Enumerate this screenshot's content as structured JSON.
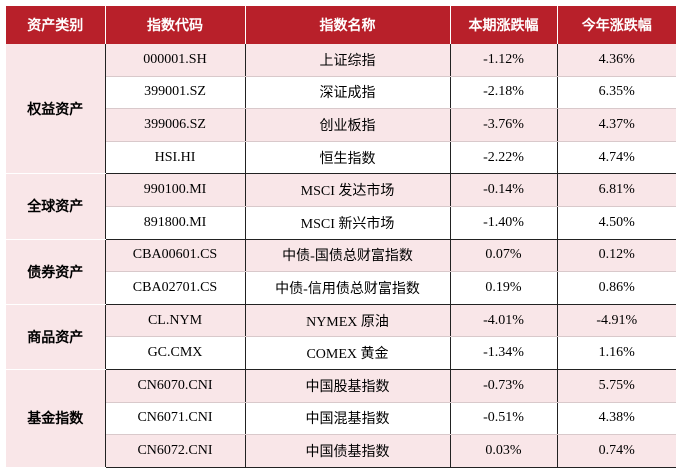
{
  "table": {
    "headers": [
      "资产类别",
      "指数代码",
      "指数名称",
      "本期涨跌幅",
      "今年涨跌幅"
    ],
    "groups": [
      {
        "category": "权益资产",
        "rows": [
          {
            "code": "000001.SH",
            "name": "上证综指",
            "period": "-1.12%",
            "ytd": "4.36%"
          },
          {
            "code": "399001.SZ",
            "name": "深证成指",
            "period": "-2.18%",
            "ytd": "6.35%"
          },
          {
            "code": "399006.SZ",
            "name": "创业板指",
            "period": "-3.76%",
            "ytd": "4.37%"
          },
          {
            "code": "HSI.HI",
            "name": "恒生指数",
            "period": "-2.22%",
            "ytd": "4.74%"
          }
        ]
      },
      {
        "category": "全球资产",
        "rows": [
          {
            "code": "990100.MI",
            "name": "MSCI 发达市场",
            "period": "-0.14%",
            "ytd": "6.81%"
          },
          {
            "code": "891800.MI",
            "name": "MSCI 新兴市场",
            "period": "-1.40%",
            "ytd": "4.50%"
          }
        ]
      },
      {
        "category": "债券资产",
        "rows": [
          {
            "code": "CBA00601.CS",
            "name": "中债-国债总财富指数",
            "period": "0.07%",
            "ytd": "0.12%"
          },
          {
            "code": "CBA02701.CS",
            "name": "中债-信用债总财富指数",
            "period": "0.19%",
            "ytd": "0.86%"
          }
        ]
      },
      {
        "category": "商品资产",
        "rows": [
          {
            "code": "CL.NYM",
            "name": "NYMEX 原油",
            "period": "-4.01%",
            "ytd": "-4.91%"
          },
          {
            "code": "GC.CMX",
            "name": "COMEX 黄金",
            "period": "-1.34%",
            "ytd": "1.16%"
          }
        ]
      },
      {
        "category": "基金指数",
        "rows": [
          {
            "code": "CN6070.CNI",
            "name": "中国股基指数",
            "period": "-0.73%",
            "ytd": "5.75%"
          },
          {
            "code": "CN6071.CNI",
            "name": "中国混基指数",
            "period": "-0.51%",
            "ytd": "4.38%"
          },
          {
            "code": "CN6072.CNI",
            "name": "中国债基指数",
            "period": "0.03%",
            "ytd": "0.74%"
          }
        ]
      }
    ]
  },
  "colors": {
    "header_bg": "#b8202a",
    "header_text": "#ffffff",
    "shade_bg": "#f9e6e8"
  }
}
